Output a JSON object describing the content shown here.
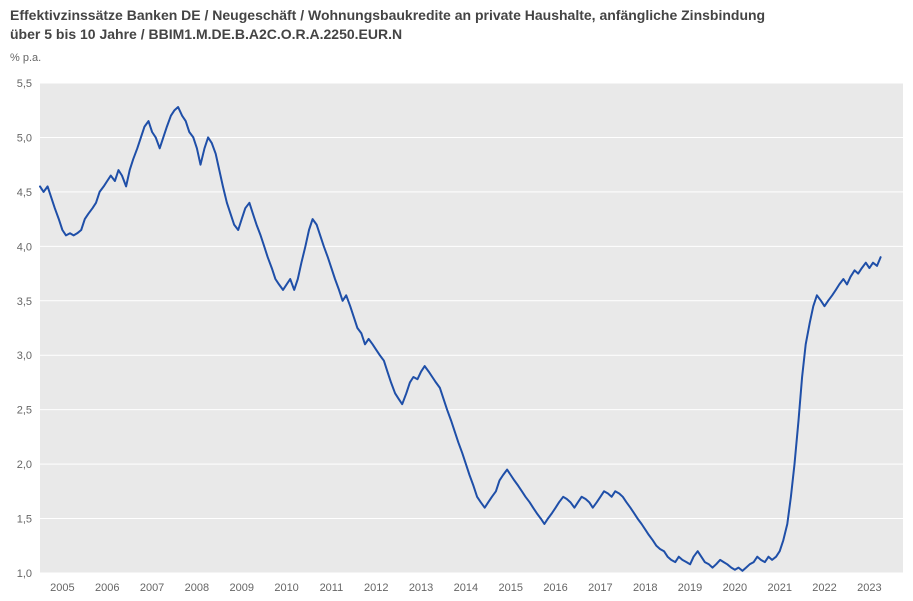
{
  "title_line1": "Effektivzinssätze Banken DE / Neugeschäft / Wohnungsbaukredite an private Haushalte, anfängliche Zinsbindung",
  "title_line2": "über 5 bis 10 Jahre / BBIM1.M.DE.B.A2C.O.R.A.2250.EUR.N",
  "subtitle": "% p.a.",
  "chart": {
    "type": "line",
    "background_color": "#e9e9e9",
    "grid_color": "#ffffff",
    "line_color": "#1f4fa8",
    "line_width": 2,
    "axis_label_color": "#666666",
    "axis_label_fontsize": 11,
    "ylim": [
      1.0,
      5.5
    ],
    "ytick_step": 0.5,
    "y_tick_format": "comma-decimal-1",
    "x_start": 2004.5,
    "x_end": 2023.75,
    "x_ticks": [
      2005,
      2006,
      2007,
      2008,
      2009,
      2010,
      2011,
      2012,
      2013,
      2014,
      2015,
      2016,
      2017,
      2018,
      2019,
      2020,
      2021,
      2022,
      2023
    ],
    "series": [
      {
        "x": 2004.5,
        "y": 4.55
      },
      {
        "x": 2004.58,
        "y": 4.5
      },
      {
        "x": 2004.67,
        "y": 4.55
      },
      {
        "x": 2004.75,
        "y": 4.45
      },
      {
        "x": 2004.83,
        "y": 4.35
      },
      {
        "x": 2004.92,
        "y": 4.25
      },
      {
        "x": 2005.0,
        "y": 4.15
      },
      {
        "x": 2005.08,
        "y": 4.1
      },
      {
        "x": 2005.17,
        "y": 4.12
      },
      {
        "x": 2005.25,
        "y": 4.1
      },
      {
        "x": 2005.33,
        "y": 4.12
      },
      {
        "x": 2005.42,
        "y": 4.15
      },
      {
        "x": 2005.5,
        "y": 4.25
      },
      {
        "x": 2005.58,
        "y": 4.3
      },
      {
        "x": 2005.67,
        "y": 4.35
      },
      {
        "x": 2005.75,
        "y": 4.4
      },
      {
        "x": 2005.83,
        "y": 4.5
      },
      {
        "x": 2005.92,
        "y": 4.55
      },
      {
        "x": 2006.0,
        "y": 4.6
      },
      {
        "x": 2006.08,
        "y": 4.65
      },
      {
        "x": 2006.17,
        "y": 4.6
      },
      {
        "x": 2006.25,
        "y": 4.7
      },
      {
        "x": 2006.33,
        "y": 4.65
      },
      {
        "x": 2006.42,
        "y": 4.55
      },
      {
        "x": 2006.5,
        "y": 4.7
      },
      {
        "x": 2006.58,
        "y": 4.8
      },
      {
        "x": 2006.67,
        "y": 4.9
      },
      {
        "x": 2006.75,
        "y": 5.0
      },
      {
        "x": 2006.83,
        "y": 5.1
      },
      {
        "x": 2006.92,
        "y": 5.15
      },
      {
        "x": 2007.0,
        "y": 5.05
      },
      {
        "x": 2007.08,
        "y": 5.0
      },
      {
        "x": 2007.17,
        "y": 4.9
      },
      {
        "x": 2007.25,
        "y": 5.0
      },
      {
        "x": 2007.33,
        "y": 5.1
      },
      {
        "x": 2007.42,
        "y": 5.2
      },
      {
        "x": 2007.5,
        "y": 5.25
      },
      {
        "x": 2007.58,
        "y": 5.28
      },
      {
        "x": 2007.67,
        "y": 5.2
      },
      {
        "x": 2007.75,
        "y": 5.15
      },
      {
        "x": 2007.83,
        "y": 5.05
      },
      {
        "x": 2007.92,
        "y": 5.0
      },
      {
        "x": 2008.0,
        "y": 4.9
      },
      {
        "x": 2008.08,
        "y": 4.75
      },
      {
        "x": 2008.17,
        "y": 4.9
      },
      {
        "x": 2008.25,
        "y": 5.0
      },
      {
        "x": 2008.33,
        "y": 4.95
      },
      {
        "x": 2008.42,
        "y": 4.85
      },
      {
        "x": 2008.5,
        "y": 4.7
      },
      {
        "x": 2008.58,
        "y": 4.55
      },
      {
        "x": 2008.67,
        "y": 4.4
      },
      {
        "x": 2008.75,
        "y": 4.3
      },
      {
        "x": 2008.83,
        "y": 4.2
      },
      {
        "x": 2008.92,
        "y": 4.15
      },
      {
        "x": 2009.0,
        "y": 4.25
      },
      {
        "x": 2009.08,
        "y": 4.35
      },
      {
        "x": 2009.17,
        "y": 4.4
      },
      {
        "x": 2009.25,
        "y": 4.3
      },
      {
        "x": 2009.33,
        "y": 4.2
      },
      {
        "x": 2009.42,
        "y": 4.1
      },
      {
        "x": 2009.5,
        "y": 4.0
      },
      {
        "x": 2009.58,
        "y": 3.9
      },
      {
        "x": 2009.67,
        "y": 3.8
      },
      {
        "x": 2009.75,
        "y": 3.7
      },
      {
        "x": 2009.83,
        "y": 3.65
      },
      {
        "x": 2009.92,
        "y": 3.6
      },
      {
        "x": 2010.0,
        "y": 3.65
      },
      {
        "x": 2010.08,
        "y": 3.7
      },
      {
        "x": 2010.17,
        "y": 3.6
      },
      {
        "x": 2010.25,
        "y": 3.7
      },
      {
        "x": 2010.33,
        "y": 3.85
      },
      {
        "x": 2010.42,
        "y": 4.0
      },
      {
        "x": 2010.5,
        "y": 4.15
      },
      {
        "x": 2010.58,
        "y": 4.25
      },
      {
        "x": 2010.67,
        "y": 4.2
      },
      {
        "x": 2010.75,
        "y": 4.1
      },
      {
        "x": 2010.83,
        "y": 4.0
      },
      {
        "x": 2010.92,
        "y": 3.9
      },
      {
        "x": 2011.0,
        "y": 3.8
      },
      {
        "x": 2011.08,
        "y": 3.7
      },
      {
        "x": 2011.17,
        "y": 3.6
      },
      {
        "x": 2011.25,
        "y": 3.5
      },
      {
        "x": 2011.33,
        "y": 3.55
      },
      {
        "x": 2011.42,
        "y": 3.45
      },
      {
        "x": 2011.5,
        "y": 3.35
      },
      {
        "x": 2011.58,
        "y": 3.25
      },
      {
        "x": 2011.67,
        "y": 3.2
      },
      {
        "x": 2011.75,
        "y": 3.1
      },
      {
        "x": 2011.83,
        "y": 3.15
      },
      {
        "x": 2011.92,
        "y": 3.1
      },
      {
        "x": 2012.0,
        "y": 3.05
      },
      {
        "x": 2012.08,
        "y": 3.0
      },
      {
        "x": 2012.17,
        "y": 2.95
      },
      {
        "x": 2012.25,
        "y": 2.85
      },
      {
        "x": 2012.33,
        "y": 2.75
      },
      {
        "x": 2012.42,
        "y": 2.65
      },
      {
        "x": 2012.5,
        "y": 2.6
      },
      {
        "x": 2012.58,
        "y": 2.55
      },
      {
        "x": 2012.67,
        "y": 2.65
      },
      {
        "x": 2012.75,
        "y": 2.75
      },
      {
        "x": 2012.83,
        "y": 2.8
      },
      {
        "x": 2012.92,
        "y": 2.78
      },
      {
        "x": 2013.0,
        "y": 2.85
      },
      {
        "x": 2013.08,
        "y": 2.9
      },
      {
        "x": 2013.17,
        "y": 2.85
      },
      {
        "x": 2013.25,
        "y": 2.8
      },
      {
        "x": 2013.33,
        "y": 2.75
      },
      {
        "x": 2013.42,
        "y": 2.7
      },
      {
        "x": 2013.5,
        "y": 2.6
      },
      {
        "x": 2013.58,
        "y": 2.5
      },
      {
        "x": 2013.67,
        "y": 2.4
      },
      {
        "x": 2013.75,
        "y": 2.3
      },
      {
        "x": 2013.83,
        "y": 2.2
      },
      {
        "x": 2013.92,
        "y": 2.1
      },
      {
        "x": 2014.0,
        "y": 2.0
      },
      {
        "x": 2014.08,
        "y": 1.9
      },
      {
        "x": 2014.17,
        "y": 1.8
      },
      {
        "x": 2014.25,
        "y": 1.7
      },
      {
        "x": 2014.33,
        "y": 1.65
      },
      {
        "x": 2014.42,
        "y": 1.6
      },
      {
        "x": 2014.5,
        "y": 1.65
      },
      {
        "x": 2014.58,
        "y": 1.7
      },
      {
        "x": 2014.67,
        "y": 1.75
      },
      {
        "x": 2014.75,
        "y": 1.85
      },
      {
        "x": 2014.83,
        "y": 1.9
      },
      {
        "x": 2014.92,
        "y": 1.95
      },
      {
        "x": 2015.0,
        "y": 1.9
      },
      {
        "x": 2015.08,
        "y": 1.85
      },
      {
        "x": 2015.17,
        "y": 1.8
      },
      {
        "x": 2015.25,
        "y": 1.75
      },
      {
        "x": 2015.33,
        "y": 1.7
      },
      {
        "x": 2015.42,
        "y": 1.65
      },
      {
        "x": 2015.5,
        "y": 1.6
      },
      {
        "x": 2015.58,
        "y": 1.55
      },
      {
        "x": 2015.67,
        "y": 1.5
      },
      {
        "x": 2015.75,
        "y": 1.45
      },
      {
        "x": 2015.83,
        "y": 1.5
      },
      {
        "x": 2015.92,
        "y": 1.55
      },
      {
        "x": 2016.0,
        "y": 1.6
      },
      {
        "x": 2016.08,
        "y": 1.65
      },
      {
        "x": 2016.17,
        "y": 1.7
      },
      {
        "x": 2016.25,
        "y": 1.68
      },
      {
        "x": 2016.33,
        "y": 1.65
      },
      {
        "x": 2016.42,
        "y": 1.6
      },
      {
        "x": 2016.5,
        "y": 1.65
      },
      {
        "x": 2016.58,
        "y": 1.7
      },
      {
        "x": 2016.67,
        "y": 1.68
      },
      {
        "x": 2016.75,
        "y": 1.65
      },
      {
        "x": 2016.83,
        "y": 1.6
      },
      {
        "x": 2016.92,
        "y": 1.65
      },
      {
        "x": 2017.0,
        "y": 1.7
      },
      {
        "x": 2017.08,
        "y": 1.75
      },
      {
        "x": 2017.17,
        "y": 1.73
      },
      {
        "x": 2017.25,
        "y": 1.7
      },
      {
        "x": 2017.33,
        "y": 1.75
      },
      {
        "x": 2017.42,
        "y": 1.73
      },
      {
        "x": 2017.5,
        "y": 1.7
      },
      {
        "x": 2017.58,
        "y": 1.65
      },
      {
        "x": 2017.67,
        "y": 1.6
      },
      {
        "x": 2017.75,
        "y": 1.55
      },
      {
        "x": 2017.83,
        "y": 1.5
      },
      {
        "x": 2017.92,
        "y": 1.45
      },
      {
        "x": 2018.0,
        "y": 1.4
      },
      {
        "x": 2018.08,
        "y": 1.35
      },
      {
        "x": 2018.17,
        "y": 1.3
      },
      {
        "x": 2018.25,
        "y": 1.25
      },
      {
        "x": 2018.33,
        "y": 1.22
      },
      {
        "x": 2018.42,
        "y": 1.2
      },
      {
        "x": 2018.5,
        "y": 1.15
      },
      {
        "x": 2018.58,
        "y": 1.12
      },
      {
        "x": 2018.67,
        "y": 1.1
      },
      {
        "x": 2018.75,
        "y": 1.15
      },
      {
        "x": 2018.83,
        "y": 1.12
      },
      {
        "x": 2018.92,
        "y": 1.1
      },
      {
        "x": 2019.0,
        "y": 1.08
      },
      {
        "x": 2019.08,
        "y": 1.15
      },
      {
        "x": 2019.17,
        "y": 1.2
      },
      {
        "x": 2019.25,
        "y": 1.15
      },
      {
        "x": 2019.33,
        "y": 1.1
      },
      {
        "x": 2019.42,
        "y": 1.08
      },
      {
        "x": 2019.5,
        "y": 1.05
      },
      {
        "x": 2019.58,
        "y": 1.08
      },
      {
        "x": 2019.67,
        "y": 1.12
      },
      {
        "x": 2019.75,
        "y": 1.1
      },
      {
        "x": 2019.83,
        "y": 1.08
      },
      {
        "x": 2019.92,
        "y": 1.05
      },
      {
        "x": 2020.0,
        "y": 1.03
      },
      {
        "x": 2020.08,
        "y": 1.05
      },
      {
        "x": 2020.17,
        "y": 1.02
      },
      {
        "x": 2020.25,
        "y": 1.05
      },
      {
        "x": 2020.33,
        "y": 1.08
      },
      {
        "x": 2020.42,
        "y": 1.1
      },
      {
        "x": 2020.5,
        "y": 1.15
      },
      {
        "x": 2020.58,
        "y": 1.12
      },
      {
        "x": 2020.67,
        "y": 1.1
      },
      {
        "x": 2020.75,
        "y": 1.15
      },
      {
        "x": 2020.83,
        "y": 1.12
      },
      {
        "x": 2020.92,
        "y": 1.15
      },
      {
        "x": 2021.0,
        "y": 1.2
      },
      {
        "x": 2021.08,
        "y": 1.3
      },
      {
        "x": 2021.17,
        "y": 1.45
      },
      {
        "x": 2021.25,
        "y": 1.7
      },
      {
        "x": 2021.33,
        "y": 2.0
      },
      {
        "x": 2021.42,
        "y": 2.4
      },
      {
        "x": 2021.5,
        "y": 2.8
      },
      {
        "x": 2021.58,
        "y": 3.1
      },
      {
        "x": 2021.67,
        "y": 3.3
      },
      {
        "x": 2021.75,
        "y": 3.45
      },
      {
        "x": 2021.83,
        "y": 3.55
      },
      {
        "x": 2021.92,
        "y": 3.5
      },
      {
        "x": 2022.0,
        "y": 3.45
      },
      {
        "x": 2022.08,
        "y": 3.5
      },
      {
        "x": 2022.17,
        "y": 3.55
      },
      {
        "x": 2022.25,
        "y": 3.6
      },
      {
        "x": 2022.33,
        "y": 3.65
      },
      {
        "x": 2022.42,
        "y": 3.7
      },
      {
        "x": 2022.5,
        "y": 3.65
      },
      {
        "x": 2022.58,
        "y": 3.72
      },
      {
        "x": 2022.67,
        "y": 3.78
      },
      {
        "x": 2022.75,
        "y": 3.75
      },
      {
        "x": 2022.83,
        "y": 3.8
      },
      {
        "x": 2022.92,
        "y": 3.85
      },
      {
        "x": 2023.0,
        "y": 3.8
      },
      {
        "x": 2023.08,
        "y": 3.85
      },
      {
        "x": 2023.17,
        "y": 3.82
      },
      {
        "x": 2023.25,
        "y": 3.9
      }
    ]
  }
}
